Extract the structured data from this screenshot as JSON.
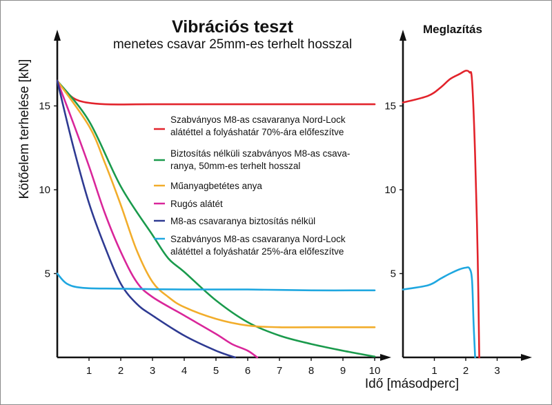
{
  "chart_data": [
    {
      "type": "line",
      "title": "Vibrációs teszt",
      "subtitle": "menetes csavar 25mm-es terhelt hosszal",
      "xlabel": "Idő [másodperc]",
      "ylabel": "Kötőelem terhelése [kN]",
      "xlim": [
        0,
        10
      ],
      "ylim": [
        0,
        18
      ],
      "xticks": [
        "1",
        "2",
        "3",
        "4",
        "5",
        "6",
        "7",
        "8",
        "9",
        "10"
      ],
      "yticks": [
        "5",
        "10",
        "15"
      ],
      "legend_position": "center-right",
      "grid": false,
      "series": [
        {
          "name": "Szabványos M8-as csavaranya Nord-Lock alátéttel a folyáshatár 70%-ára előfeszítve",
          "color": "#e2232b",
          "points": [
            [
              0,
              16.5
            ],
            [
              0.3,
              15.8
            ],
            [
              0.7,
              15.3
            ],
            [
              1.5,
              15.1
            ],
            [
              3,
              15.1
            ],
            [
              6,
              15.1
            ],
            [
              10,
              15.1
            ]
          ]
        },
        {
          "name": "Biztosítás nélküli szabványos M8-as csavaranya, 50mm-es terhelt hosszal",
          "color": "#1a9a4c",
          "points": [
            [
              0,
              16.5
            ],
            [
              1,
              14.1
            ],
            [
              2,
              10.2
            ],
            [
              3,
              7.3
            ],
            [
              3.5,
              5.9
            ],
            [
              4,
              5.1
            ],
            [
              5,
              3.4
            ],
            [
              6,
              2.1
            ],
            [
              7,
              1.3
            ],
            [
              8,
              0.8
            ],
            [
              9,
              0.4
            ],
            [
              10,
              0.05
            ]
          ]
        },
        {
          "name": "Műanyagbetétes anya",
          "color": "#f2ad2b",
          "points": [
            [
              0,
              16.5
            ],
            [
              1,
              13.8
            ],
            [
              1.5,
              11.6
            ],
            [
              2,
              9.1
            ],
            [
              2.5,
              6.4
            ],
            [
              3,
              4.5
            ],
            [
              3.5,
              3.6
            ],
            [
              4,
              3.0
            ],
            [
              5,
              2.3
            ],
            [
              6,
              1.9
            ],
            [
              7,
              1.8
            ],
            [
              8,
              1.8
            ],
            [
              10,
              1.8
            ]
          ]
        },
        {
          "name": "Rugós alátét",
          "color": "#d9269a",
          "points": [
            [
              0,
              16.5
            ],
            [
              0.5,
              14.0
            ],
            [
              1,
              11.4
            ],
            [
              1.5,
              8.6
            ],
            [
              2,
              6.3
            ],
            [
              2.5,
              4.5
            ],
            [
              3,
              3.6
            ],
            [
              4,
              2.5
            ],
            [
              5,
              1.4
            ],
            [
              5.5,
              0.8
            ],
            [
              6,
              0.4
            ],
            [
              6.3,
              0.0
            ]
          ]
        },
        {
          "name": "M8-as csavaranya biztosítás nélkül",
          "color": "#2e3a92",
          "points": [
            [
              0,
              16.5
            ],
            [
              0.5,
              12.6
            ],
            [
              1,
              9.2
            ],
            [
              1.5,
              6.6
            ],
            [
              2,
              4.4
            ],
            [
              2.5,
              3.2
            ],
            [
              3,
              2.5
            ],
            [
              4,
              1.3
            ],
            [
              5,
              0.4
            ],
            [
              5.6,
              0.0
            ]
          ]
        },
        {
          "name": "Szabványos M8-as csavaranya Nord-Lock alátéttel a folyáshatár 25%-ára előfeszítve",
          "color": "#1fa7e0",
          "points": [
            [
              0,
              5.0
            ],
            [
              0.3,
              4.4
            ],
            [
              0.8,
              4.15
            ],
            [
              2,
              4.1
            ],
            [
              4,
              4.05
            ],
            [
              6,
              4.05
            ],
            [
              8,
              4.0
            ],
            [
              10,
              4.0
            ]
          ]
        }
      ]
    },
    {
      "type": "line",
      "title": "Meglazítás",
      "xlim": [
        0,
        4
      ],
      "ylim": [
        0,
        18
      ],
      "xticks": [
        "1",
        "2",
        "3"
      ],
      "yticks": [
        "5",
        "10",
        "15"
      ],
      "grid": false,
      "series": [
        {
          "color": "#e2232b",
          "points": [
            [
              0,
              15.2
            ],
            [
              0.8,
              15.6
            ],
            [
              1.2,
              16.1
            ],
            [
              1.5,
              16.6
            ],
            [
              1.8,
              16.9
            ],
            [
              2.0,
              17.1
            ],
            [
              2.12,
              17.0
            ],
            [
              2.2,
              16.5
            ],
            [
              2.3,
              12.0
            ],
            [
              2.38,
              6.0
            ],
            [
              2.43,
              0.0
            ]
          ]
        },
        {
          "color": "#1fa7e0",
          "points": [
            [
              0,
              4.05
            ],
            [
              0.8,
              4.3
            ],
            [
              1.2,
              4.7
            ],
            [
              1.5,
              5.0
            ],
            [
              1.8,
              5.25
            ],
            [
              2.0,
              5.35
            ],
            [
              2.12,
              5.3
            ],
            [
              2.2,
              4.6
            ],
            [
              2.25,
              2.0
            ],
            [
              2.3,
              0.0
            ]
          ]
        }
      ]
    }
  ]
}
